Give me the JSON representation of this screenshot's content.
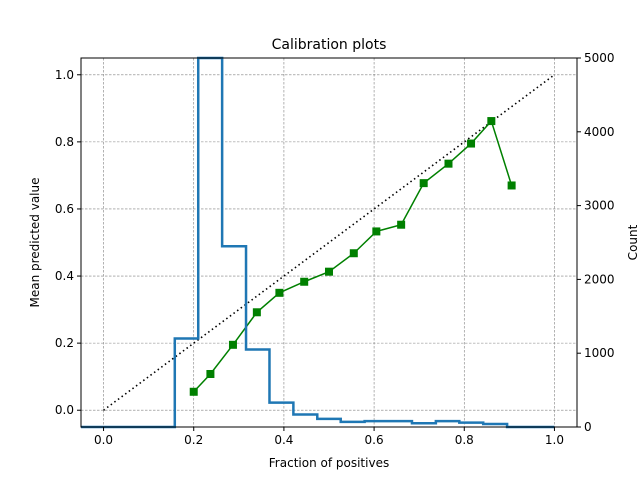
{
  "chart_data": {
    "type": "line",
    "title": "Calibration plots",
    "xlabel": "Fraction of positives",
    "ylabel": "Mean predicted value",
    "y2label": "Count",
    "xlim": [
      -0.05,
      1.05
    ],
    "ylim": [
      -0.05,
      1.05
    ],
    "y2lim": [
      0,
      5000
    ],
    "xticks": [
      "0.0",
      "0.2",
      "0.4",
      "0.6",
      "0.8",
      "1.0"
    ],
    "xtick_values": [
      0.0,
      0.2,
      0.4,
      0.6,
      0.8,
      1.0
    ],
    "yticks": [
      "0.0",
      "0.2",
      "0.4",
      "0.6",
      "0.8",
      "1.0"
    ],
    "ytick_values": [
      0.0,
      0.2,
      0.4,
      0.6,
      0.8,
      1.0
    ],
    "y2ticks": [
      "0",
      "1000",
      "2000",
      "3000",
      "4000",
      "5000"
    ],
    "y2tick_values": [
      0,
      1000,
      2000,
      3000,
      4000,
      5000
    ],
    "grid": true,
    "series": [
      {
        "role": "reference",
        "style": "dotted",
        "color": "#000000",
        "axis": "left",
        "x": [
          0.0,
          1.0
        ],
        "y": [
          0.0,
          1.0
        ]
      },
      {
        "role": "calibration",
        "style": "line-square-markers",
        "color": "#008000",
        "axis": "left",
        "x": [
          0.2,
          0.237,
          0.287,
          0.34,
          0.39,
          0.445,
          0.5,
          0.555,
          0.605,
          0.66,
          0.71,
          0.765,
          0.815,
          0.86,
          0.905
        ],
        "y": [
          0.055,
          0.108,
          0.195,
          0.292,
          0.35,
          0.383,
          0.413,
          0.468,
          0.533,
          0.553,
          0.677,
          0.735,
          0.795,
          0.862,
          0.67
        ]
      },
      {
        "role": "histogram",
        "style": "step",
        "color": "#1f77b4",
        "axis": "right",
        "bin_edges": [
          -0.05,
          0.158,
          0.21,
          0.263,
          0.316,
          0.368,
          0.421,
          0.474,
          0.526,
          0.579,
          0.632,
          0.684,
          0.737,
          0.789,
          0.842,
          0.895,
          1.0
        ],
        "counts": [
          0,
          1200,
          5000,
          2450,
          1050,
          330,
          170,
          110,
          70,
          80,
          80,
          50,
          80,
          60,
          40,
          0
        ]
      }
    ]
  }
}
